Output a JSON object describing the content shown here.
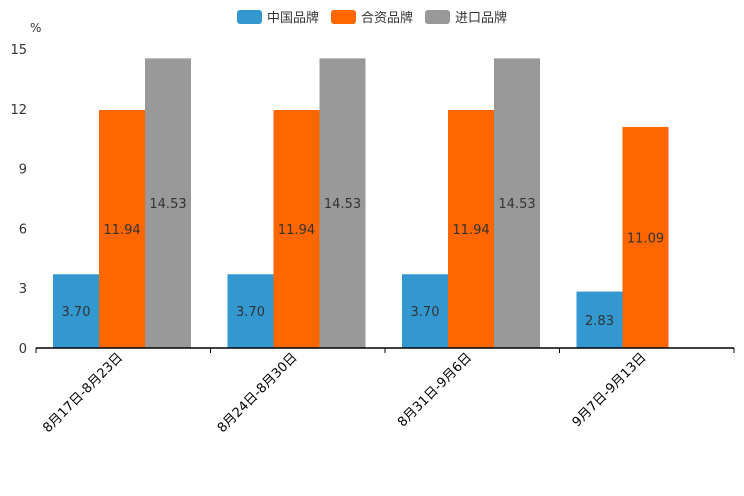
{
  "chart_data": {
    "type": "bar",
    "unit": "%",
    "categories": [
      "8月17日-8月23日",
      "8月24日-8月30日",
      "8月31日-9月6日",
      "9月7日-9月13日"
    ],
    "series": [
      {
        "name": "中国品牌",
        "color": "#3398d0",
        "values": [
          3.7,
          3.7,
          3.7,
          2.83
        ],
        "labels": [
          "3.70",
          "3.70",
          "3.70",
          "2.83"
        ]
      },
      {
        "name": "合资品牌",
        "color": "#ff6600",
        "values": [
          11.94,
          11.94,
          11.94,
          11.09
        ],
        "labels": [
          "11.94",
          "11.94",
          "11.94",
          "11.09"
        ]
      },
      {
        "name": "进口品牌",
        "color": "#999999",
        "values": [
          14.53,
          14.53,
          14.53,
          null
        ],
        "labels": [
          "14.53",
          "14.53",
          "14.53",
          null
        ]
      }
    ],
    "yticks": [
      "0",
      "3",
      "6",
      "9",
      "12",
      "15"
    ],
    "ylim": [
      0,
      15
    ],
    "legend_position": "top-center",
    "label_position": "inside-middle"
  }
}
